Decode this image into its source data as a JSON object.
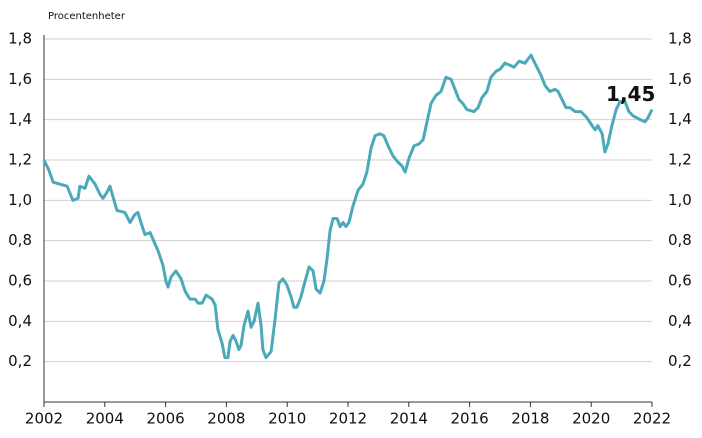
{
  "chart_data": {
    "type": "line",
    "subtitle": "Procentenheter",
    "x": [
      2002.0,
      2002.16,
      2002.3,
      2002.53,
      2002.76,
      2002.95,
      2003.12,
      2003.18,
      2003.35,
      2003.48,
      2003.68,
      2003.84,
      2003.94,
      2004.07,
      2004.17,
      2004.4,
      2004.66,
      2004.83,
      2004.99,
      2005.09,
      2005.19,
      2005.32,
      2005.49,
      2005.75,
      2005.91,
      2006.01,
      2006.08,
      2006.18,
      2006.34,
      2006.51,
      2006.64,
      2006.8,
      2006.97,
      2007.07,
      2007.2,
      2007.33,
      2007.53,
      2007.63,
      2007.72,
      2007.86,
      2007.95,
      2008.05,
      2008.12,
      2008.22,
      2008.32,
      2008.41,
      2008.48,
      2008.58,
      2008.71,
      2008.81,
      2008.91,
      2009.04,
      2009.14,
      2009.2,
      2009.3,
      2009.47,
      2009.6,
      2009.73,
      2009.86,
      2009.99,
      2010.13,
      2010.22,
      2010.32,
      2010.45,
      2010.59,
      2010.72,
      2010.85,
      2010.95,
      2011.08,
      2011.21,
      2011.31,
      2011.41,
      2011.51,
      2011.64,
      2011.74,
      2011.84,
      2011.93,
      2012.03,
      2012.16,
      2012.33,
      2012.49,
      2012.62,
      2012.76,
      2012.89,
      2013.05,
      2013.18,
      2013.32,
      2013.48,
      2013.64,
      2013.78,
      2013.88,
      2014.01,
      2014.17,
      2014.34,
      2014.47,
      2014.6,
      2014.73,
      2014.89,
      2015.06,
      2015.22,
      2015.39,
      2015.52,
      2015.65,
      2015.78,
      2015.91,
      2016.14,
      2016.28,
      2016.41,
      2016.57,
      2016.7,
      2016.87,
      2017.0,
      2017.16,
      2017.33,
      2017.46,
      2017.63,
      2017.82,
      2018.02,
      2018.18,
      2018.35,
      2018.48,
      2018.64,
      2018.81,
      2018.91,
      2019.04,
      2019.17,
      2019.3,
      2019.47,
      2019.66,
      2019.86,
      2020.03,
      2020.13,
      2020.22,
      2020.36,
      2020.45,
      2020.55,
      2020.68,
      2020.82,
      2020.95,
      2021.11,
      2021.24,
      2021.37,
      2021.61,
      2021.77,
      2021.87,
      2022.0
    ],
    "series": [
      {
        "color": "#4ba9b9",
        "values": [
          1.2,
          1.15,
          1.09,
          1.08,
          1.07,
          1.0,
          1.01,
          1.07,
          1.06,
          1.12,
          1.08,
          1.03,
          1.01,
          1.04,
          1.07,
          0.95,
          0.94,
          0.89,
          0.93,
          0.94,
          0.89,
          0.83,
          0.84,
          0.75,
          0.68,
          0.6,
          0.57,
          0.62,
          0.65,
          0.61,
          0.55,
          0.51,
          0.51,
          0.49,
          0.49,
          0.53,
          0.51,
          0.48,
          0.36,
          0.29,
          0.22,
          0.22,
          0.3,
          0.33,
          0.3,
          0.26,
          0.28,
          0.38,
          0.45,
          0.37,
          0.4,
          0.49,
          0.38,
          0.26,
          0.22,
          0.25,
          0.41,
          0.59,
          0.61,
          0.58,
          0.52,
          0.47,
          0.47,
          0.52,
          0.6,
          0.67,
          0.65,
          0.56,
          0.54,
          0.6,
          0.71,
          0.85,
          0.91,
          0.91,
          0.87,
          0.89,
          0.87,
          0.89,
          0.97,
          1.05,
          1.08,
          1.14,
          1.26,
          1.32,
          1.33,
          1.32,
          1.27,
          1.22,
          1.19,
          1.17,
          1.14,
          1.21,
          1.27,
          1.28,
          1.3,
          1.39,
          1.48,
          1.52,
          1.54,
          1.61,
          1.6,
          1.55,
          1.5,
          1.48,
          1.45,
          1.44,
          1.46,
          1.51,
          1.54,
          1.61,
          1.64,
          1.65,
          1.68,
          1.67,
          1.66,
          1.69,
          1.68,
          1.72,
          1.67,
          1.62,
          1.57,
          1.54,
          1.55,
          1.54,
          1.5,
          1.46,
          1.46,
          1.44,
          1.44,
          1.41,
          1.37,
          1.35,
          1.37,
          1.33,
          1.24,
          1.28,
          1.37,
          1.45,
          1.49,
          1.49,
          1.44,
          1.42,
          1.4,
          1.39,
          1.41,
          1.45
        ]
      }
    ],
    "annotations": [
      {
        "x": 2021.3,
        "y": 1.52,
        "label": "1,45"
      }
    ],
    "xlim": [
      2002,
      2022
    ],
    "xticks": [
      2002,
      2004,
      2006,
      2008,
      2010,
      2012,
      2014,
      2016,
      2018,
      2020,
      2022
    ],
    "ylim": [
      0,
      1.8
    ],
    "yticks": [
      {
        "value": 0.2,
        "label": "0,2"
      },
      {
        "value": 0.4,
        "label": "0,4"
      },
      {
        "value": 0.6,
        "label": "0,6"
      },
      {
        "value": 0.8,
        "label": "0,8"
      },
      {
        "value": 1.0,
        "label": "1,0"
      },
      {
        "value": 1.2,
        "label": "1,2"
      },
      {
        "value": 1.4,
        "label": "1,4"
      },
      {
        "value": 1.6,
        "label": "1,6"
      },
      {
        "value": 1.8,
        "label": "1,8"
      }
    ],
    "grid": true
  }
}
